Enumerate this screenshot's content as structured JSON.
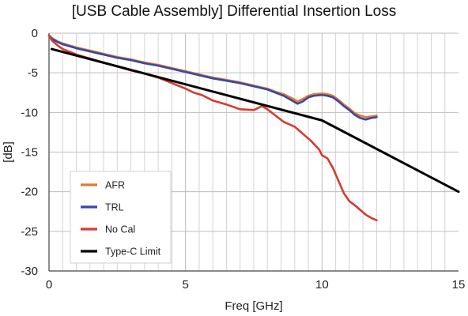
{
  "chart_data": {
    "type": "line",
    "title": "[USB Cable Assembly] Differential Insertion Loss",
    "xlabel": "Freq [GHz]",
    "ylabel": "[dB]",
    "xlim": [
      0,
      15
    ],
    "ylim": [
      -30,
      0
    ],
    "x_ticks": [
      0,
      5,
      10,
      15
    ],
    "y_ticks": [
      0,
      -5,
      -10,
      -15,
      -20,
      -25,
      -30
    ],
    "x_minor_step": 0.5,
    "grid": true,
    "legend_position": "bottom-left",
    "series": [
      {
        "name": "AFR",
        "color": "#e8782a",
        "x": [
          0,
          0.1,
          0.3,
          0.5,
          1,
          1.5,
          2,
          2.5,
          3,
          3.5,
          4,
          4.5,
          5,
          5.5,
          6,
          6.5,
          7,
          7.5,
          8,
          8.3,
          8.6,
          8.9,
          9.1,
          9.3,
          9.5,
          9.7,
          10,
          10.2,
          10.4,
          10.6,
          10.8,
          11,
          11.2,
          11.4,
          11.6,
          11.8,
          12
        ],
        "y": [
          -0.3,
          -0.6,
          -1.0,
          -1.3,
          -1.8,
          -2.2,
          -2.6,
          -3.0,
          -3.3,
          -3.7,
          -4.0,
          -4.4,
          -4.8,
          -5.2,
          -5.6,
          -5.9,
          -6.2,
          -6.6,
          -7.0,
          -7.4,
          -7.7,
          -8.2,
          -8.6,
          -8.3,
          -7.9,
          -7.7,
          -7.6,
          -7.7,
          -7.9,
          -8.4,
          -9.0,
          -9.5,
          -10.1,
          -10.4,
          -10.6,
          -10.5,
          -10.4
        ]
      },
      {
        "name": "TRL",
        "color": "#3548a8",
        "x": [
          0,
          0.1,
          0.3,
          0.5,
          1,
          1.5,
          2,
          2.5,
          3,
          3.5,
          4,
          4.5,
          5,
          5.5,
          6,
          6.5,
          7,
          7.5,
          8,
          8.3,
          8.6,
          8.9,
          9.1,
          9.3,
          9.5,
          9.7,
          10,
          10.2,
          10.4,
          10.6,
          10.8,
          11,
          11.2,
          11.4,
          11.6,
          11.8,
          12
        ],
        "y": [
          -0.3,
          -0.7,
          -1.1,
          -1.4,
          -1.9,
          -2.3,
          -2.7,
          -3.1,
          -3.4,
          -3.8,
          -4.1,
          -4.5,
          -4.9,
          -5.3,
          -5.7,
          -6.0,
          -6.3,
          -6.7,
          -7.1,
          -7.5,
          -7.9,
          -8.5,
          -8.9,
          -8.6,
          -8.1,
          -7.9,
          -7.8,
          -7.9,
          -8.1,
          -8.6,
          -9.2,
          -9.7,
          -10.3,
          -10.7,
          -10.9,
          -10.7,
          -10.6
        ]
      },
      {
        "name": "No Cal",
        "color": "#d83a2e",
        "x": [
          0,
          0.1,
          0.3,
          0.5,
          0.8,
          1,
          1.5,
          2,
          2.5,
          3,
          3.5,
          4,
          4.5,
          5,
          5.3,
          5.6,
          6,
          6.5,
          7,
          7.5,
          7.8,
          8,
          8.3,
          8.6,
          9,
          9.3,
          9.6,
          9.9,
          10,
          10.2,
          10.4,
          10.6,
          10.8,
          11,
          11.2,
          11.4,
          11.6,
          11.8,
          12
        ],
        "y": [
          -0.3,
          -0.9,
          -1.5,
          -2.0,
          -2.4,
          -2.7,
          -3.2,
          -3.7,
          -4.2,
          -4.7,
          -5.1,
          -5.6,
          -6.3,
          -7.0,
          -7.5,
          -7.8,
          -8.5,
          -9.0,
          -9.6,
          -9.7,
          -9.2,
          -9.6,
          -10.4,
          -11.2,
          -11.8,
          -12.7,
          -13.6,
          -14.7,
          -15.4,
          -15.8,
          -17.0,
          -18.6,
          -20.2,
          -21.2,
          -21.7,
          -22.3,
          -22.9,
          -23.3,
          -23.6
        ]
      },
      {
        "name": "Type-C Limit",
        "color": "#000000",
        "x": [
          0.1,
          10,
          15
        ],
        "y": [
          -2.0,
          -11.0,
          -20.0
        ]
      }
    ]
  }
}
